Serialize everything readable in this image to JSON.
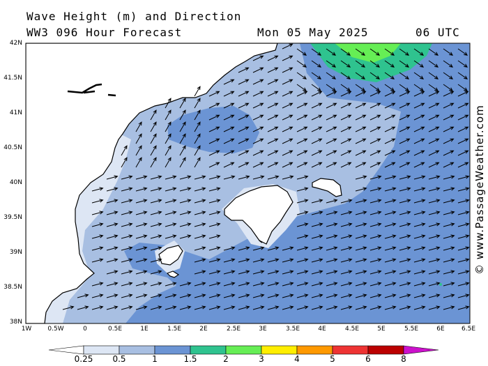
{
  "header": {
    "title": "Wave Height (m) and Direction",
    "model": "WW3 096 Hour Forecast",
    "date": "Mon 05 May 2025",
    "time": "06 UTC"
  },
  "credit": "© www.PassageWeather.com",
  "lat_labels": [
    "42N",
    "41.5N",
    "41N",
    "40.5N",
    "40N",
    "39.5N",
    "39N",
    "38.5N",
    "38N"
  ],
  "lon_labels": [
    "1W",
    "0.5W",
    "0",
    "0.5E",
    "1E",
    "1.5E",
    "2E",
    "2.5E",
    "3E",
    "3.5E",
    "4E",
    "4.5E",
    "5E",
    "5.5E",
    "6E",
    "6.5E"
  ],
  "legend": {
    "labels": [
      "0.25",
      "0.5",
      "1",
      "1.5",
      "2",
      "3",
      "4",
      "5",
      "6",
      "8"
    ],
    "colors": [
      "#ffffff",
      "#dde6f4",
      "#a8bfe2",
      "#6b94d4",
      "#2fc38f",
      "#66ee55",
      "#ffee00",
      "#ff9900",
      "#ee3333",
      "#bb0000",
      "#cc11cc"
    ]
  },
  "colors": {
    "land": "#ffffff",
    "coast": "#000000",
    "arrow": "#000000"
  }
}
